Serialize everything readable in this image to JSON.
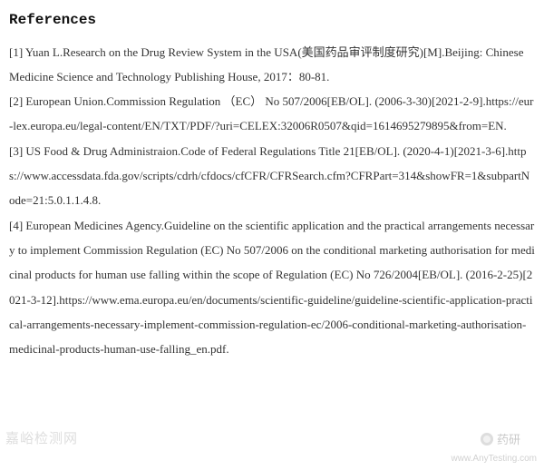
{
  "heading": "References",
  "references": [
    "[1] Yuan L.Research on the Drug Review System in the USA(美国药品审评制度研究)[M].Beijing: Chinese Medicine Science and Technology Publishing House, 2017：80-81.",
    "[2] European Union.Commission Regulation （EC） No 507/2006[EB/OL]. (2006-3-30)[2021-2-9].https://eur-lex.europa.eu/legal-content/EN/TXT/PDF/?uri=CELEX:32006R0507&qid=1614695279895&from=EN.",
    "[3] US Food & Drug Administraion.Code of Federal Regulations Title 21[EB/OL]. (2020-4-1)[2021-3-6].https://www.accessdata.fda.gov/scripts/cdrh/cfdocs/cfCFR/CFRSearch.cfm?CFRPart=314&showFR=1&subpartNode=21:5.0.1.1.4.8.",
    "[4] European Medicines Agency.Guideline on the scientific application and the practical arrangements necessary to implement Commission Regulation (EC) No 507/2006 on the conditional marketing authorisation for medicinal products for human use falling within the scope of Regulation (EC) No 726/2004[EB/OL]. (2016-2-25)[2021-3-12].https://www.ema.europa.eu/en/documents/scientific-guideline/guideline-scientific-application-practical-arrangements-necessary-implement-commission-regulation-ec/2006-conditional-marketing-authorisation-medicinal-products-human-use-falling_en.pdf."
  ],
  "watermark_left": "嘉峪检测网",
  "watermark_right": "药研",
  "footer_url": "www.AnyTesting.com",
  "style": {
    "font_family": "Times New Roman / SimSun",
    "font_size_pt": 10,
    "heading_font_family": "Courier New",
    "heading_font_size_pt": 12,
    "text_color": "#333333",
    "heading_color": "#111111",
    "background_color": "#ffffff",
    "line_height": 2.1,
    "watermark_color": "rgba(120,120,120,0.3)"
  }
}
